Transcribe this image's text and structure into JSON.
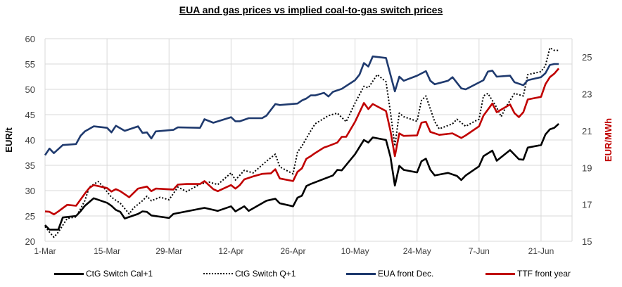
{
  "chart_data": {
    "type": "line",
    "title": "EUA and gas prices vs implied coal-to-gas switch prices",
    "ylabel": "EUR/t",
    "y2label": "EUR/MWh",
    "ylim": [
      20,
      60
    ],
    "y2lim": [
      15,
      26
    ],
    "yticks": [
      20,
      25,
      30,
      35,
      40,
      45,
      50,
      55,
      60
    ],
    "y2ticks": [
      15,
      17,
      19,
      21,
      23,
      25
    ],
    "xlim": [
      "1-Mar",
      "28-Jun"
    ],
    "xticks": [
      "1-Mar",
      "15-Mar",
      "29-Mar",
      "12-Apr",
      "26-Apr",
      "10-May",
      "24-May",
      "7-Jun",
      "21-Jun"
    ],
    "grid": true,
    "legend_position": "bottom",
    "series": [
      {
        "name": "CtG Switch Cal+1",
        "axis": "left",
        "color": "#000000",
        "style": "solid",
        "points": [
          [
            "1-Mar",
            23.2
          ],
          [
            "2-Mar",
            22.3
          ],
          [
            "4-Mar",
            22.3
          ],
          [
            "5-Mar",
            24.7
          ],
          [
            "8-Mar",
            25.0
          ],
          [
            "9-Mar",
            25.9
          ],
          [
            "10-Mar",
            27.0
          ],
          [
            "12-Mar",
            28.5
          ],
          [
            "15-Mar",
            27.6
          ],
          [
            "16-Mar",
            27.0
          ],
          [
            "17-Mar",
            26.2
          ],
          [
            "18-Mar",
            25.8
          ],
          [
            "19-Mar",
            24.5
          ],
          [
            "22-Mar",
            25.4
          ],
          [
            "23-Mar",
            25.9
          ],
          [
            "24-Mar",
            25.8
          ],
          [
            "25-Mar",
            25.1
          ],
          [
            "29-Mar",
            24.6
          ],
          [
            "30-Mar",
            25.4
          ],
          [
            "6-Apr",
            26.6
          ],
          [
            "8-Apr",
            26.2
          ],
          [
            "9-Apr",
            26.0
          ],
          [
            "12-Apr",
            26.9
          ],
          [
            "13-Apr",
            25.9
          ],
          [
            "15-Apr",
            26.9
          ],
          [
            "16-Apr",
            26.0
          ],
          [
            "20-Apr",
            28.0
          ],
          [
            "22-Apr",
            28.4
          ],
          [
            "23-Apr",
            27.5
          ],
          [
            "26-Apr",
            26.9
          ],
          [
            "27-Apr",
            28.6
          ],
          [
            "28-Apr",
            29.0
          ],
          [
            "29-Apr",
            30.9
          ],
          [
            "30-Apr",
            31.3
          ],
          [
            "5-May",
            33.0
          ],
          [
            "6-May",
            34.1
          ],
          [
            "7-May",
            34.0
          ],
          [
            "10-May",
            37.2
          ],
          [
            "12-May",
            40.0
          ],
          [
            "13-May",
            39.5
          ],
          [
            "14-May",
            40.5
          ],
          [
            "17-May",
            40.0
          ],
          [
            "18-May",
            36.7
          ],
          [
            "19-May",
            31.0
          ],
          [
            "20-May",
            34.9
          ],
          [
            "21-May",
            34.1
          ],
          [
            "24-May",
            33.6
          ],
          [
            "25-May",
            35.8
          ],
          [
            "26-May",
            36.3
          ],
          [
            "27-May",
            34.1
          ],
          [
            "28-May",
            33.0
          ],
          [
            "31-May",
            33.5
          ],
          [
            "2-Jun",
            32.9
          ],
          [
            "3-Jun",
            32.1
          ],
          [
            "4-Jun",
            33.0
          ],
          [
            "7-Jun",
            34.8
          ],
          [
            "8-Jun",
            36.8
          ],
          [
            "10-Jun",
            37.9
          ],
          [
            "11-Jun",
            35.9
          ],
          [
            "14-Jun",
            38.0
          ],
          [
            "16-Jun",
            36.2
          ],
          [
            "17-Jun",
            36.1
          ],
          [
            "18-Jun",
            38.5
          ],
          [
            "21-Jun",
            39.0
          ],
          [
            "22-Jun",
            41.1
          ],
          [
            "23-Jun",
            42.1
          ],
          [
            "24-Jun",
            42.4
          ],
          [
            "25-Jun",
            43.2
          ]
        ]
      },
      {
        "name": "CtG Switch Q+1",
        "axis": "left",
        "color": "#000000",
        "style": "dotted",
        "points": [
          [
            "1-Mar",
            22.9
          ],
          [
            "2-Mar",
            21.8
          ],
          [
            "3-Mar",
            20.8
          ],
          [
            "4-Mar",
            21.8
          ],
          [
            "6-Mar",
            24.5
          ],
          [
            "8-Mar",
            24.8
          ],
          [
            "10-Mar",
            28.0
          ],
          [
            "11-Mar",
            30.7
          ],
          [
            "13-Mar",
            31.8
          ],
          [
            "14-Mar",
            30.9
          ],
          [
            "16-Mar",
            28.7
          ],
          [
            "18-Mar",
            27.5
          ],
          [
            "20-Mar",
            25.4
          ],
          [
            "21-Mar",
            26.6
          ],
          [
            "23-Mar",
            28.0
          ],
          [
            "24-Mar",
            28.9
          ],
          [
            "25-Mar",
            28.0
          ],
          [
            "27-Mar",
            28.7
          ],
          [
            "29-Mar",
            28.2
          ],
          [
            "31-Mar",
            30.7
          ],
          [
            "2-Apr",
            29.8
          ],
          [
            "5-Apr",
            31.3
          ],
          [
            "7-Apr",
            31.7
          ],
          [
            "9-Apr",
            31.2
          ],
          [
            "12-Apr",
            33.5
          ],
          [
            "13-Apr",
            32.1
          ],
          [
            "15-Apr",
            34.0
          ],
          [
            "17-Apr",
            33.5
          ],
          [
            "20-Apr",
            35.8
          ],
          [
            "22-Apr",
            37.2
          ],
          [
            "23-Apr",
            34.7
          ],
          [
            "26-Apr",
            33.3
          ],
          [
            "27-Apr",
            37.6
          ],
          [
            "28-Apr",
            38.8
          ],
          [
            "30-Apr",
            41.8
          ],
          [
            "1-May",
            43.2
          ],
          [
            "4-May",
            44.8
          ],
          [
            "6-May",
            45.3
          ],
          [
            "8-May",
            43.6
          ],
          [
            "10-May",
            47.3
          ],
          [
            "12-May",
            50.6
          ],
          [
            "13-May",
            50.3
          ],
          [
            "15-May",
            52.9
          ],
          [
            "17-May",
            51.5
          ],
          [
            "18-May",
            45.5
          ],
          [
            "19-May",
            38.8
          ],
          [
            "20-May",
            45.3
          ],
          [
            "21-May",
            44.6
          ],
          [
            "24-May",
            43.7
          ],
          [
            "25-May",
            47.8
          ],
          [
            "26-May",
            48.7
          ],
          [
            "28-May",
            43.6
          ],
          [
            "29-May",
            42.2
          ],
          [
            "1-Jun",
            43.2
          ],
          [
            "2-Jun",
            44.1
          ],
          [
            "4-Jun",
            42.7
          ],
          [
            "6-Jun",
            43.7
          ],
          [
            "7-Jun",
            44.1
          ],
          [
            "8-Jun",
            48.7
          ],
          [
            "9-Jun",
            49.2
          ],
          [
            "11-Jun",
            46.4
          ],
          [
            "12-Jun",
            44.6
          ],
          [
            "13-Jun",
            46.4
          ],
          [
            "15-Jun",
            49.2
          ],
          [
            "17-Jun",
            48.7
          ],
          [
            "18-Jun",
            52.9
          ],
          [
            "21-Jun",
            53.5
          ],
          [
            "22-Jun",
            54.7
          ],
          [
            "23-Jun",
            58.2
          ],
          [
            "24-Jun",
            57.7
          ],
          [
            "25-Jun",
            57.7
          ]
        ]
      },
      {
        "name": "EUA front Dec.",
        "axis": "left",
        "color": "#1f3a6e",
        "style": "solid",
        "points": [
          [
            "1-Mar",
            37.0
          ],
          [
            "2-Mar",
            38.3
          ],
          [
            "3-Mar",
            37.4
          ],
          [
            "5-Mar",
            39.0
          ],
          [
            "8-Mar",
            39.2
          ],
          [
            "9-Mar",
            40.8
          ],
          [
            "10-Mar",
            41.7
          ],
          [
            "12-Mar",
            42.7
          ],
          [
            "15-Mar",
            42.4
          ],
          [
            "16-Mar",
            41.5
          ],
          [
            "17-Mar",
            42.8
          ],
          [
            "19-Mar",
            41.8
          ],
          [
            "22-Mar",
            42.7
          ],
          [
            "23-Mar",
            41.4
          ],
          [
            "24-Mar",
            41.5
          ],
          [
            "25-Mar",
            40.3
          ],
          [
            "26-Mar",
            41.7
          ],
          [
            "30-Mar",
            42.0
          ],
          [
            "31-Mar",
            42.5
          ],
          [
            "5-Apr",
            42.4
          ],
          [
            "6-Apr",
            44.1
          ],
          [
            "8-Apr",
            43.4
          ],
          [
            "12-Apr",
            44.5
          ],
          [
            "13-Apr",
            43.7
          ],
          [
            "14-Apr",
            43.7
          ],
          [
            "16-Apr",
            44.3
          ],
          [
            "19-Apr",
            44.3
          ],
          [
            "20-Apr",
            44.8
          ],
          [
            "22-Apr",
            47.1
          ],
          [
            "23-Apr",
            46.9
          ],
          [
            "27-Apr",
            47.2
          ],
          [
            "28-Apr",
            47.8
          ],
          [
            "29-Apr",
            48.2
          ],
          [
            "30-Apr",
            48.8
          ],
          [
            "1-May",
            48.8
          ],
          [
            "3-May",
            49.3
          ],
          [
            "4-May",
            48.6
          ],
          [
            "5-May",
            49.5
          ],
          [
            "7-May",
            50.1
          ],
          [
            "10-May",
            51.8
          ],
          [
            "11-May",
            52.9
          ],
          [
            "12-May",
            55.2
          ],
          [
            "13-May",
            54.5
          ],
          [
            "14-May",
            56.5
          ],
          [
            "17-May",
            56.2
          ],
          [
            "19-May",
            49.6
          ],
          [
            "20-May",
            52.5
          ],
          [
            "21-May",
            51.7
          ],
          [
            "24-May",
            52.7
          ],
          [
            "26-May",
            53.6
          ],
          [
            "27-May",
            51.7
          ],
          [
            "28-May",
            51.0
          ],
          [
            "31-May",
            51.7
          ],
          [
            "1-Jun",
            52.4
          ],
          [
            "3-Jun",
            50.2
          ],
          [
            "4-Jun",
            50.0
          ],
          [
            "8-Jun",
            51.8
          ],
          [
            "9-Jun",
            53.5
          ],
          [
            "10-Jun",
            53.7
          ],
          [
            "11-Jun",
            52.5
          ],
          [
            "14-Jun",
            52.7
          ],
          [
            "15-Jun",
            51.4
          ],
          [
            "17-Jun",
            50.8
          ],
          [
            "18-Jun",
            51.8
          ],
          [
            "21-Jun",
            52.4
          ],
          [
            "22-Jun",
            53.2
          ],
          [
            "23-Jun",
            54.8
          ],
          [
            "24-Jun",
            55.0
          ],
          [
            "25-Jun",
            55.0
          ]
        ]
      },
      {
        "name": "TTF front year",
        "axis": "right",
        "color": "#c00000",
        "style": "solid",
        "points": [
          [
            "1-Mar",
            16.62
          ],
          [
            "2-Mar",
            16.6
          ],
          [
            "3-Mar",
            16.46
          ],
          [
            "4-Mar",
            16.62
          ],
          [
            "6-Mar",
            16.98
          ],
          [
            "8-Mar",
            16.93
          ],
          [
            "10-Mar",
            17.59
          ],
          [
            "11-Mar",
            17.89
          ],
          [
            "12-Mar",
            18.05
          ],
          [
            "15-Mar",
            17.89
          ],
          [
            "16-Mar",
            17.7
          ],
          [
            "17-Mar",
            17.83
          ],
          [
            "18-Mar",
            17.72
          ],
          [
            "20-Mar",
            17.39
          ],
          [
            "22-Mar",
            17.86
          ],
          [
            "24-Mar",
            17.97
          ],
          [
            "25-Mar",
            17.72
          ],
          [
            "26-Mar",
            17.86
          ],
          [
            "30-Mar",
            17.81
          ],
          [
            "31-Mar",
            18.08
          ],
          [
            "2-Apr",
            18.11
          ],
          [
            "5-Apr",
            18.11
          ],
          [
            "6-Apr",
            18.27
          ],
          [
            "8-Apr",
            17.83
          ],
          [
            "9-Apr",
            17.72
          ],
          [
            "12-Apr",
            18.05
          ],
          [
            "13-Apr",
            17.86
          ],
          [
            "14-Apr",
            18.05
          ],
          [
            "15-Apr",
            18.36
          ],
          [
            "17-Apr",
            18.52
          ],
          [
            "19-Apr",
            18.66
          ],
          [
            "21-Apr",
            18.69
          ],
          [
            "22-Apr",
            18.91
          ],
          [
            "23-Apr",
            18.41
          ],
          [
            "26-Apr",
            18.27
          ],
          [
            "27-Apr",
            18.77
          ],
          [
            "28-Apr",
            18.96
          ],
          [
            "29-Apr",
            19.48
          ],
          [
            "30-Apr",
            19.62
          ],
          [
            "1-May",
            19.79
          ],
          [
            "3-May",
            20.09
          ],
          [
            "4-May",
            20.17
          ],
          [
            "6-May",
            20.36
          ],
          [
            "7-May",
            20.67
          ],
          [
            "8-May",
            20.67
          ],
          [
            "10-May",
            21.49
          ],
          [
            "12-May",
            22.51
          ],
          [
            "13-May",
            22.18
          ],
          [
            "14-May",
            22.45
          ],
          [
            "17-May",
            22.07
          ],
          [
            "18-May",
            21.0
          ],
          [
            "19-May",
            19.62
          ],
          [
            "20-May",
            20.86
          ],
          [
            "21-May",
            20.72
          ],
          [
            "24-May",
            20.75
          ],
          [
            "25-May",
            21.44
          ],
          [
            "26-May",
            21.49
          ],
          [
            "27-May",
            20.94
          ],
          [
            "29-May",
            20.78
          ],
          [
            "1-Jun",
            20.86
          ],
          [
            "3-Jun",
            20.61
          ],
          [
            "4-Jun",
            20.75
          ],
          [
            "7-Jun",
            21.24
          ],
          [
            "8-Jun",
            21.82
          ],
          [
            "10-Jun",
            22.48
          ],
          [
            "11-Jun",
            22.01
          ],
          [
            "14-Jun",
            22.43
          ],
          [
            "15-Jun",
            21.96
          ],
          [
            "16-Jun",
            21.74
          ],
          [
            "17-Jun",
            22.01
          ],
          [
            "18-Jun",
            22.7
          ],
          [
            "21-Jun",
            22.84
          ],
          [
            "22-Jun",
            23.53
          ],
          [
            "23-Jun",
            23.91
          ],
          [
            "24-Jun",
            24.1
          ],
          [
            "25-Jun",
            24.38
          ]
        ]
      }
    ]
  }
}
